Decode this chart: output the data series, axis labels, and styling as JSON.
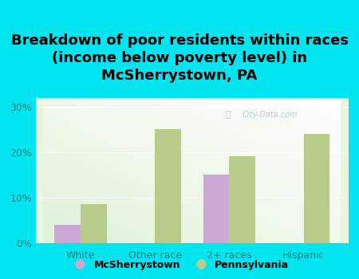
{
  "title": "Breakdown of poor residents within races\n(income below poverty level) in\nMcSherrystown, PA",
  "categories": [
    "White",
    "Other race",
    "2+ races",
    "Hispanic"
  ],
  "mcsherrystown_values": [
    4.0,
    0,
    15.0,
    0
  ],
  "pennsylvania_values": [
    8.5,
    25.0,
    19.0,
    24.0
  ],
  "mcsherrystown_color": "#c9a8d4",
  "pennsylvania_color": "#b8cc8a",
  "background_color": "#00e5f0",
  "ylim": [
    0,
    32
  ],
  "yticks": [
    0,
    10,
    20,
    30
  ],
  "bar_width": 0.35,
  "title_fontsize": 13,
  "tick_fontsize": 9,
  "label_color": "#008080",
  "legend_label_1": "McSherrystown",
  "legend_label_2": "Pennsylvania",
  "watermark": "City-Data.com"
}
